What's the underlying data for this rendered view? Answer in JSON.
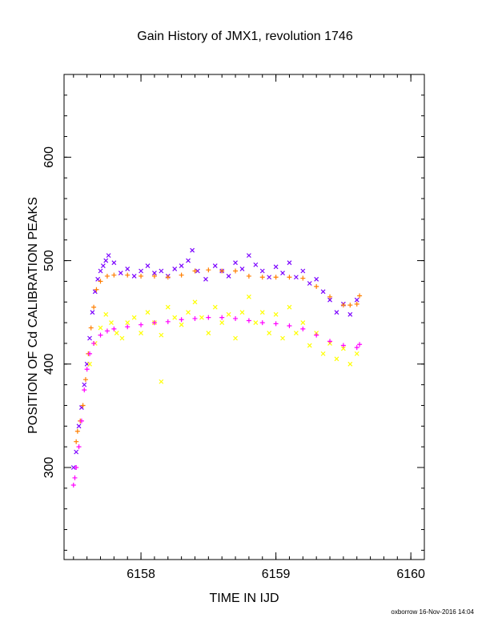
{
  "chart_data": {
    "type": "scatter",
    "title": "Gain History of JMX1, revolution 1746",
    "xlabel": "TIME IN IJD",
    "ylabel": "POSITION OF Cd CALIBRATION PEAKS",
    "xlim": [
      6157.43,
      6160.1
    ],
    "ylim": [
      211,
      680
    ],
    "xticks": [
      6158,
      6159,
      6160
    ],
    "yticks": [
      300,
      400,
      500,
      600
    ],
    "grid": false,
    "legend": "none",
    "series": [
      {
        "color": "#7b00ff",
        "marker": "x",
        "points": [
          [
            6157.5,
            300
          ],
          [
            6157.52,
            315
          ],
          [
            6157.54,
            340
          ],
          [
            6157.56,
            358
          ],
          [
            6157.58,
            380
          ],
          [
            6157.6,
            400
          ],
          [
            6157.62,
            425
          ],
          [
            6157.64,
            450
          ],
          [
            6157.66,
            470
          ],
          [
            6157.68,
            482
          ],
          [
            6157.7,
            490
          ],
          [
            6157.72,
            495
          ],
          [
            6157.74,
            500
          ],
          [
            6157.76,
            505
          ],
          [
            6157.8,
            498
          ],
          [
            6157.85,
            488
          ],
          [
            6157.9,
            492
          ],
          [
            6157.95,
            485
          ],
          [
            6158.0,
            490
          ],
          [
            6158.05,
            495
          ],
          [
            6158.1,
            488
          ],
          [
            6158.15,
            490
          ],
          [
            6158.2,
            485
          ],
          [
            6158.25,
            492
          ],
          [
            6158.3,
            495
          ],
          [
            6158.35,
            500
          ],
          [
            6158.38,
            510
          ],
          [
            6158.42,
            490
          ],
          [
            6158.48,
            482
          ],
          [
            6158.55,
            495
          ],
          [
            6158.6,
            490
          ],
          [
            6158.65,
            485
          ],
          [
            6158.7,
            498
          ],
          [
            6158.75,
            492
          ],
          [
            6158.8,
            505
          ],
          [
            6158.85,
            496
          ],
          [
            6158.9,
            490
          ],
          [
            6158.95,
            484
          ],
          [
            6159.0,
            494
          ],
          [
            6159.05,
            488
          ],
          [
            6159.1,
            498
          ],
          [
            6159.15,
            484
          ],
          [
            6159.2,
            490
          ],
          [
            6159.25,
            478
          ],
          [
            6159.3,
            482
          ],
          [
            6159.35,
            470
          ],
          [
            6159.4,
            462
          ],
          [
            6159.45,
            450
          ],
          [
            6159.5,
            458
          ],
          [
            6159.55,
            448
          ],
          [
            6159.6,
            462
          ]
        ]
      },
      {
        "color": "#ffff00",
        "marker": "x",
        "points": [
          [
            6157.62,
            400
          ],
          [
            6157.66,
            420
          ],
          [
            6157.7,
            435
          ],
          [
            6157.74,
            448
          ],
          [
            6157.78,
            440
          ],
          [
            6157.82,
            430
          ],
          [
            6157.86,
            425
          ],
          [
            6157.9,
            440
          ],
          [
            6157.95,
            445
          ],
          [
            6158.0,
            430
          ],
          [
            6158.05,
            450
          ],
          [
            6158.1,
            440
          ],
          [
            6158.15,
            428
          ],
          [
            6158.2,
            455
          ],
          [
            6158.25,
            445
          ],
          [
            6158.3,
            438
          ],
          [
            6158.35,
            450
          ],
          [
            6158.4,
            460
          ],
          [
            6158.45,
            445
          ],
          [
            6158.5,
            430
          ],
          [
            6158.55,
            455
          ],
          [
            6158.6,
            440
          ],
          [
            6158.65,
            448
          ],
          [
            6158.7,
            425
          ],
          [
            6158.75,
            450
          ],
          [
            6158.8,
            465
          ],
          [
            6158.85,
            440
          ],
          [
            6158.9,
            450
          ],
          [
            6158.95,
            430
          ],
          [
            6159.0,
            448
          ],
          [
            6159.05,
            425
          ],
          [
            6159.1,
            455
          ],
          [
            6159.15,
            430
          ],
          [
            6159.2,
            440
          ],
          [
            6159.25,
            418
          ],
          [
            6159.3,
            430
          ],
          [
            6159.35,
            410
          ],
          [
            6159.4,
            420
          ],
          [
            6159.45,
            405
          ],
          [
            6159.5,
            415
          ],
          [
            6159.55,
            400
          ],
          [
            6159.6,
            410
          ],
          [
            6158.15,
            383
          ]
        ]
      },
      {
        "color": "#ff7f00",
        "marker": "+",
        "points": [
          [
            6157.52,
            325
          ],
          [
            6157.53,
            335
          ],
          [
            6157.55,
            345
          ],
          [
            6157.57,
            360
          ],
          [
            6157.59,
            385
          ],
          [
            6157.61,
            410
          ],
          [
            6157.63,
            435
          ],
          [
            6157.65,
            455
          ],
          [
            6157.67,
            472
          ],
          [
            6157.7,
            480
          ],
          [
            6157.75,
            485
          ],
          [
            6157.8,
            486
          ],
          [
            6157.9,
            486
          ],
          [
            6158.0,
            485
          ],
          [
            6158.1,
            485
          ],
          [
            6158.2,
            484
          ],
          [
            6158.3,
            486
          ],
          [
            6158.4,
            490
          ],
          [
            6158.5,
            491
          ],
          [
            6158.6,
            490
          ],
          [
            6158.7,
            490
          ],
          [
            6158.8,
            485
          ],
          [
            6158.9,
            484
          ],
          [
            6159.0,
            484
          ],
          [
            6159.1,
            484
          ],
          [
            6159.2,
            483
          ],
          [
            6159.3,
            475
          ],
          [
            6159.4,
            465
          ],
          [
            6159.5,
            457
          ],
          [
            6159.55,
            457
          ],
          [
            6159.6,
            458
          ],
          [
            6159.62,
            466
          ]
        ]
      },
      {
        "color": "#ff00ff",
        "marker": "+",
        "points": [
          [
            6157.5,
            283
          ],
          [
            6157.51,
            290
          ],
          [
            6157.52,
            300
          ],
          [
            6157.54,
            320
          ],
          [
            6157.56,
            345
          ],
          [
            6157.58,
            375
          ],
          [
            6157.6,
            395
          ],
          [
            6157.62,
            410
          ],
          [
            6157.65,
            420
          ],
          [
            6157.7,
            428
          ],
          [
            6157.75,
            432
          ],
          [
            6157.8,
            434
          ],
          [
            6157.9,
            436
          ],
          [
            6158.0,
            438
          ],
          [
            6158.1,
            440
          ],
          [
            6158.2,
            441
          ],
          [
            6158.3,
            443
          ],
          [
            6158.4,
            444
          ],
          [
            6158.5,
            445
          ],
          [
            6158.6,
            445
          ],
          [
            6158.7,
            444
          ],
          [
            6158.8,
            442
          ],
          [
            6158.9,
            440
          ],
          [
            6159.0,
            439
          ],
          [
            6159.1,
            437
          ],
          [
            6159.2,
            434
          ],
          [
            6159.3,
            428
          ],
          [
            6159.4,
            422
          ],
          [
            6159.5,
            418
          ],
          [
            6159.6,
            416
          ],
          [
            6159.62,
            419
          ]
        ]
      }
    ]
  },
  "footer": "oxborrow 16-Nov-2016 14:04"
}
